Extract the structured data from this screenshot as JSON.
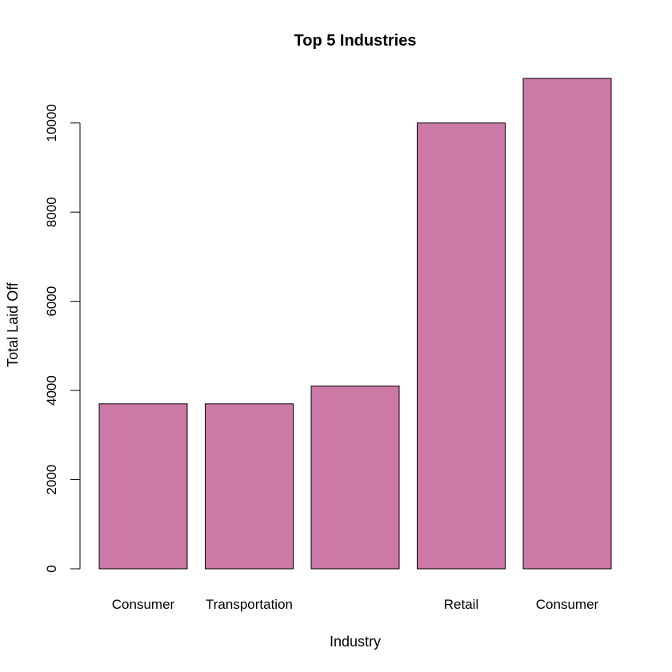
{
  "chart_data": {
    "type": "bar",
    "title": "Top 5 Industries",
    "xlabel": "Industry",
    "ylabel": "Total Laid Off",
    "categories": [
      "Consumer",
      "Transportation",
      "",
      "Retail",
      "Consumer"
    ],
    "values": [
      3700,
      3700,
      4100,
      10000,
      11000
    ],
    "ylim": [
      0,
      11000
    ],
    "yticks": [
      0,
      2000,
      4000,
      6000,
      8000,
      10000
    ],
    "bar_color": "#CC79A7",
    "grid": false,
    "legend": "none"
  }
}
